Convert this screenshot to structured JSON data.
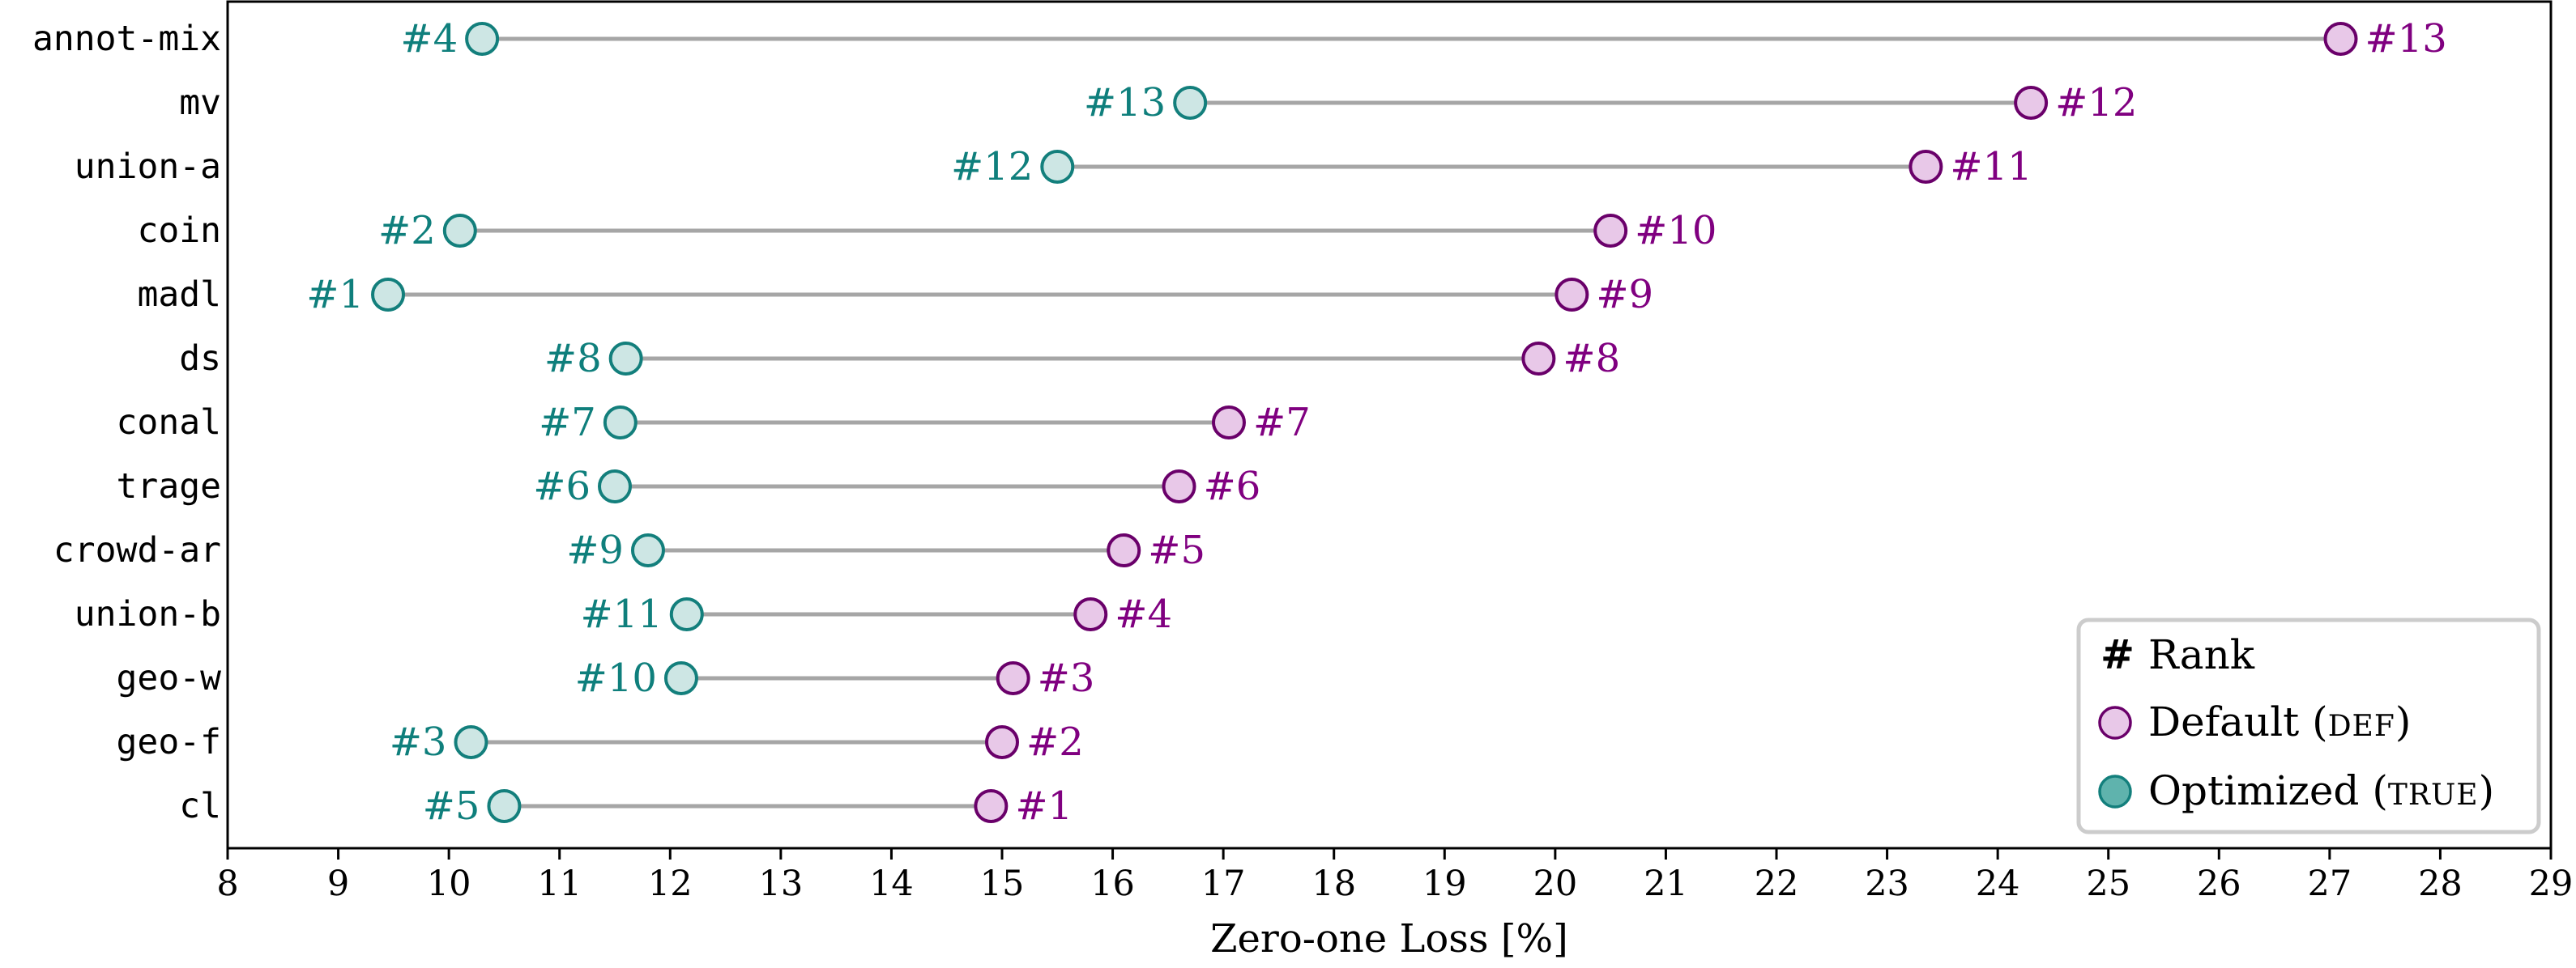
{
  "chart_data": {
    "type": "dumbbell",
    "xlabel": "Zero-one Loss [%]",
    "xlim": [
      8,
      29
    ],
    "xticks": [
      8,
      9,
      10,
      11,
      12,
      13,
      14,
      15,
      16,
      17,
      18,
      19,
      20,
      21,
      22,
      23,
      24,
      25,
      26,
      27,
      28,
      29
    ],
    "grid": false,
    "legend_position": "bottom-right",
    "colors": {
      "default_stroke": "#6a006a",
      "default_fill": "#e8c8e8",
      "optimized_stroke": "#137f7c",
      "optimized_fill": "#cde6e4",
      "connector": "#a6a6a6",
      "default_label": "#800080",
      "optimized_label": "#0f7f7c"
    },
    "categories": [
      "annot-mix",
      "mv",
      "union-a",
      "coin",
      "madl",
      "ds",
      "conal",
      "trage",
      "crowd-ar",
      "union-b",
      "geo-w",
      "geo-f",
      "cl"
    ],
    "series": [
      {
        "name": "Default",
        "values": [
          27.1,
          24.3,
          23.35,
          20.5,
          20.15,
          19.85,
          17.05,
          16.6,
          16.1,
          15.8,
          15.1,
          15.0,
          14.9
        ],
        "ranks": [
          "#13",
          "#12",
          "#11",
          "#10",
          "#9",
          "#8",
          "#7",
          "#6",
          "#5",
          "#4",
          "#3",
          "#2",
          "#1"
        ]
      },
      {
        "name": "Optimized",
        "values": [
          10.3,
          16.7,
          15.5,
          10.1,
          9.45,
          11.6,
          11.55,
          11.5,
          11.8,
          12.15,
          12.1,
          10.2,
          10.5
        ],
        "ranks": [
          "#4",
          "#13",
          "#12",
          "#2",
          "#1",
          "#8",
          "#7",
          "#6",
          "#9",
          "#11",
          "#10",
          "#3",
          "#5"
        ]
      }
    ],
    "legend": {
      "rank_symbol": "#",
      "rank_label": "Rank",
      "default_label": "Default (",
      "default_tag": "DEF",
      "optimized_label": "Optimized (",
      "optimized_tag": "TRUE",
      "close_paren": ")"
    }
  }
}
